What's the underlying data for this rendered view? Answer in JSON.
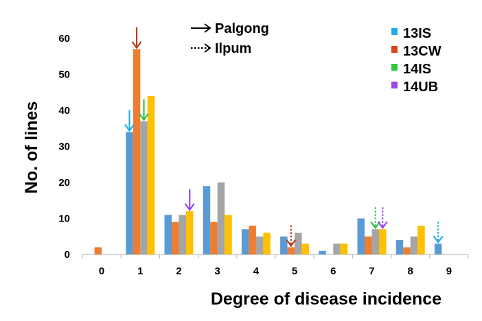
{
  "chart_data": {
    "type": "bar",
    "xlabel": "Degree of disease incidence",
    "ylabel": "No. of lines",
    "ylim": [
      0,
      60
    ],
    "yticks": [
      0,
      10,
      20,
      30,
      40,
      50,
      60
    ],
    "categories": [
      "0",
      "1",
      "2",
      "3",
      "4",
      "5",
      "6",
      "7",
      "8",
      "9"
    ],
    "series": [
      {
        "name": "13IS",
        "color": "#5b9bd5",
        "values": [
          0,
          34,
          11,
          19,
          7,
          5,
          1,
          10,
          4,
          3
        ]
      },
      {
        "name": "13CW",
        "color": "#ed7d31",
        "values": [
          2,
          57,
          9,
          9,
          8,
          2,
          0,
          5,
          2,
          0
        ]
      },
      {
        "name": "14IS",
        "color": "#a5a5a5",
        "values": [
          0,
          37,
          11,
          20,
          5,
          6,
          3,
          7,
          5,
          0
        ]
      },
      {
        "name": "14UB",
        "color": "#ffc000",
        "values": [
          0,
          44,
          12,
          11,
          6,
          3,
          3,
          7,
          8,
          0
        ]
      }
    ],
    "legend": {
      "placement": "top-right",
      "entries": [
        {
          "label": "13IS",
          "color": "#1faee4"
        },
        {
          "label": "13CW",
          "color": "#d6491c"
        },
        {
          "label": "14IS",
          "color": "#2cc63f"
        },
        {
          "label": "14UB",
          "color": "#9a45e8"
        }
      ]
    },
    "arrow_legend": {
      "placement": "top-center",
      "entries": [
        {
          "label": "Palgong",
          "style": "solid"
        },
        {
          "label": "Ilpum",
          "style": "dotted"
        }
      ]
    },
    "annotations": [
      {
        "category": "1",
        "series": "13IS",
        "style": "solid",
        "color": "#1faee4"
      },
      {
        "category": "1",
        "series": "13CW",
        "style": "solid",
        "color": "#c0391b"
      },
      {
        "category": "1",
        "series": "14IS",
        "style": "solid",
        "color": "#2cc63f"
      },
      {
        "category": "2",
        "series": "14UB",
        "style": "solid",
        "color": "#9a45e8"
      },
      {
        "category": "5",
        "series": "13CW",
        "style": "dotted",
        "color": "#c0391b"
      },
      {
        "category": "7",
        "series": "14IS",
        "style": "dotted",
        "color": "#2cc63f"
      },
      {
        "category": "7",
        "series": "14UB",
        "style": "dotted",
        "color": "#9a45e8"
      },
      {
        "category": "9",
        "series": "13IS",
        "style": "dotted",
        "color": "#1faee4"
      }
    ]
  }
}
